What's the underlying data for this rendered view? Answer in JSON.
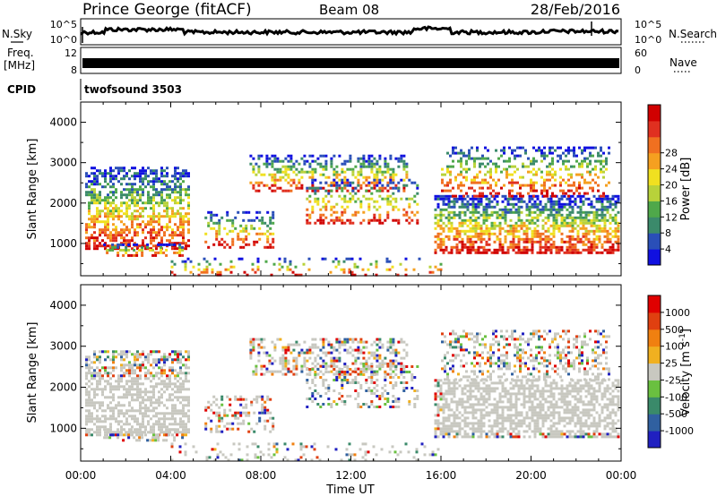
{
  "header": {
    "station": "Prince George (fitACF)",
    "beam": "Beam 08",
    "date": "28/Feb/2016"
  },
  "panels": {
    "nsky_label": "N.Sky",
    "nsearch_label": "N.Search",
    "freq_label_1": "Freq.",
    "freq_label_2": "[MHz]",
    "nave_label": "Nave",
    "cpid_label": "CPID",
    "cpid_value": "twofsound 3503",
    "nsky_ticks": [
      "10^5",
      "10^0"
    ],
    "nsearch_ticks": [
      "10^5",
      "10^0"
    ],
    "freq_ticks": [
      "12",
      "8"
    ],
    "nave_ticks": [
      "60",
      "0"
    ]
  },
  "chart_data": [
    {
      "type": "heatmap",
      "name": "power",
      "ylabel": "Slant Range [km]",
      "yticks": [
        "1000",
        "2000",
        "3000",
        "4000"
      ],
      "ylim": [
        200,
        4500
      ],
      "colorbar_label": "Power [dB]",
      "colorbar_ticks": [
        "4",
        "8",
        "12",
        "16",
        "20",
        "24",
        "28"
      ],
      "colors": [
        "#1010e0",
        "#2a4fb8",
        "#3b8a6b",
        "#4fa84a",
        "#b8d23a",
        "#f0e020",
        "#f5a020",
        "#f07020",
        "#e03020",
        "#d00000"
      ]
    },
    {
      "type": "heatmap",
      "name": "velocity",
      "ylabel": "Slant Range [km]",
      "yticks": [
        "1000",
        "2000",
        "3000",
        "4000"
      ],
      "ylim": [
        200,
        4500
      ],
      "colorbar_label": "Velocity [m s",
      "colorbar_label_sup": "-1",
      "colorbar_label_end": "]",
      "colorbar_ticks": [
        "1000",
        "500",
        "100",
        "25",
        "-25",
        "-100",
        "-500",
        "-1000"
      ],
      "colors": [
        "#2020c0",
        "#3060a0",
        "#3a8a6a",
        "#6ac040",
        "#c8c8c0",
        "#f0b020",
        "#f08010",
        "#e04010",
        "#e00000"
      ]
    }
  ],
  "time_axis": {
    "label": "Time UT",
    "ticks": [
      "00:00",
      "04:00",
      "08:00",
      "12:00",
      "16:00",
      "20:00",
      "00:00"
    ]
  }
}
